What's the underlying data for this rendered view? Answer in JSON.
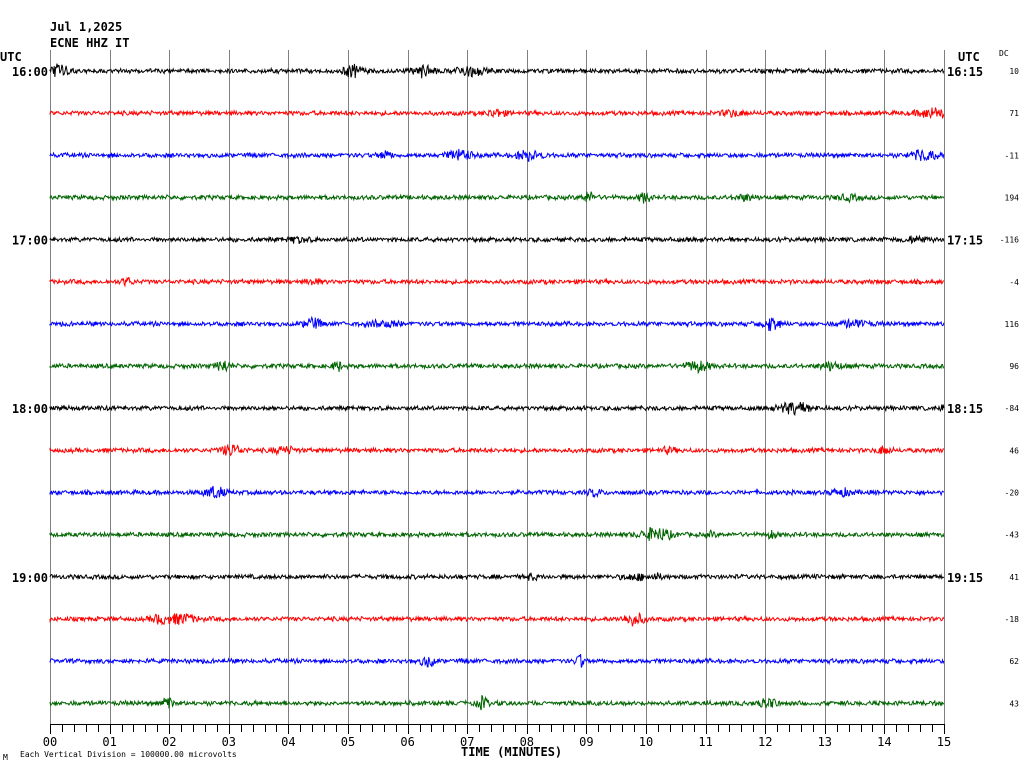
{
  "header": {
    "date": "Jul 1,2025",
    "station": "ECNE HHZ IT"
  },
  "left_tz": "UTC",
  "right_tz": "UTC",
  "dc_header": "DC",
  "footer": {
    "corner_mark": "M",
    "scale_note": "Each Vertical Division = 100000.00 microvolts",
    "xaxis_title": "TIME (MINUTES)"
  },
  "chart_data": {
    "type": "line",
    "title": "",
    "xlabel": "TIME (MINUTES)",
    "ylabel": "",
    "xlim": [
      0,
      15
    ],
    "x_ticks": [
      "00",
      "01",
      "02",
      "03",
      "04",
      "05",
      "06",
      "07",
      "08",
      "09",
      "10",
      "11",
      "12",
      "13",
      "14",
      "15"
    ],
    "grid": true,
    "trace_colors": [
      "#000000",
      "#ff0000",
      "#0000ff",
      "#006400"
    ],
    "rows": [
      {
        "left": "16:00",
        "right": "16:15",
        "dc": "10"
      },
      {
        "left": "",
        "right": "",
        "dc": "71"
      },
      {
        "left": "",
        "right": "",
        "dc": "-11"
      },
      {
        "left": "",
        "right": "",
        "dc": "194"
      },
      {
        "left": "17:00",
        "right": "17:15",
        "dc": "-116"
      },
      {
        "left": "",
        "right": "",
        "dc": "-4"
      },
      {
        "left": "",
        "right": "",
        "dc": "116"
      },
      {
        "left": "",
        "right": "",
        "dc": "96"
      },
      {
        "left": "18:00",
        "right": "18:15",
        "dc": "-84"
      },
      {
        "left": "",
        "right": "",
        "dc": "46"
      },
      {
        "left": "",
        "right": "",
        "dc": "-20"
      },
      {
        "left": "",
        "right": "",
        "dc": "-43"
      },
      {
        "left": "19:00",
        "right": "19:15",
        "dc": "41"
      },
      {
        "left": "",
        "right": "",
        "dc": "-18"
      },
      {
        "left": "",
        "right": "",
        "dc": "62"
      },
      {
        "left": "",
        "right": "",
        "dc": "43"
      }
    ]
  }
}
